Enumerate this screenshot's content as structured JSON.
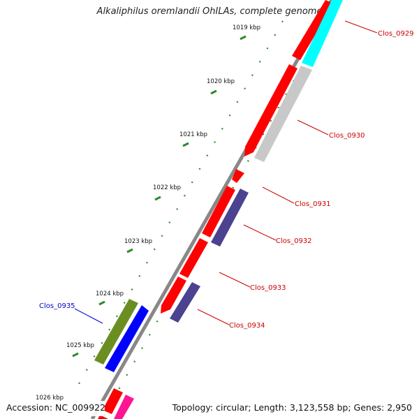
{
  "map": {
    "title": "Alkaliphilus oremlandii OhILAs, complete genome",
    "accession": "Accession: NC_009922",
    "summary": "Topology: circular; Length: 3,123,558 bp; Genes: 2,950",
    "kbp_labels": [
      "1019 kbp",
      "1020 kbp",
      "1021 kbp",
      "1022 kbp",
      "1023 kbp",
      "1024 kbp",
      "1025 kbp",
      "1026 kbp"
    ],
    "genes": [
      {
        "label": "Clos_0929",
        "color": "#cc0000"
      },
      {
        "label": "Clos_0930",
        "color": "#cc0000"
      },
      {
        "label": "Clos_0931",
        "color": "#cc0000"
      },
      {
        "label": "Clos_0932",
        "color": "#cc0000"
      },
      {
        "label": "Clos_0933",
        "color": "#cc0000"
      },
      {
        "label": "Clos_0934",
        "color": "#cc0000"
      },
      {
        "label": "Clos_0935",
        "color": "#0000cc"
      }
    ],
    "colors": {
      "cds": "#ff0000",
      "cyan": "#00ffff",
      "gray": "#c8c8c8",
      "slate": "#4b4390",
      "olive": "#6b8e23",
      "blue": "#0000ff",
      "magenta": "#ff1493",
      "tick": "#2d8a2d"
    }
  }
}
